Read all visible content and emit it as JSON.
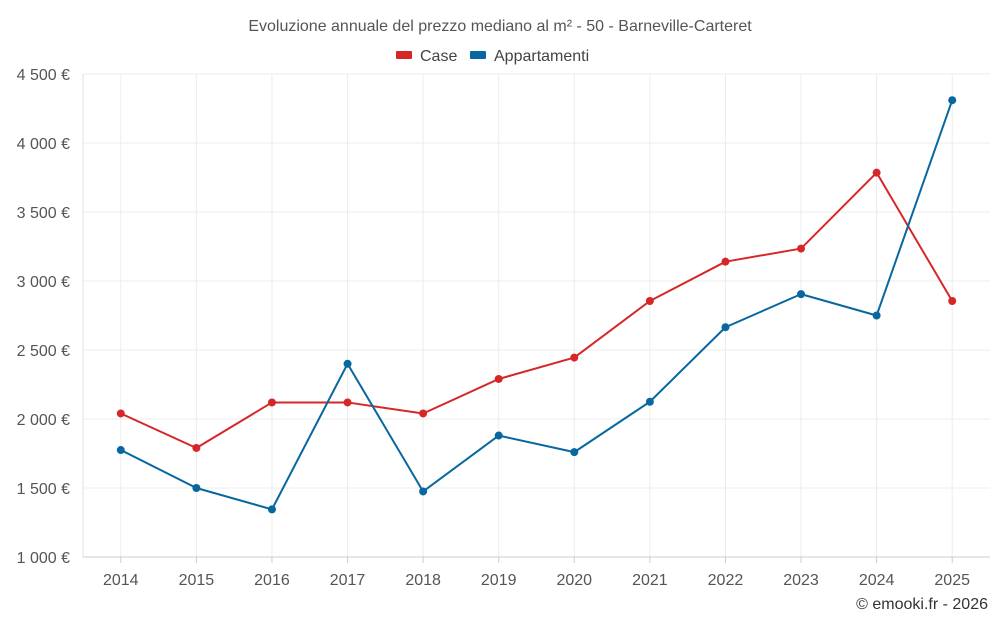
{
  "chart_data": {
    "type": "line",
    "title": "Evoluzione annuale del prezzo mediano al m² - 50 - Barneville-Carteret",
    "categories": [
      "2014",
      "2015",
      "2016",
      "2017",
      "2018",
      "2019",
      "2020",
      "2021",
      "2022",
      "2023",
      "2024",
      "2025"
    ],
    "y_tick_labels": [
      "1 000 €",
      "1 500 €",
      "2 000 €",
      "2 500 €",
      "3 000 €",
      "3 500 €",
      "4 000 €",
      "4 500 €"
    ],
    "y_ticks": [
      1000,
      1500,
      2000,
      2500,
      3000,
      3500,
      4000,
      4500
    ],
    "ylim": [
      1000,
      4500
    ],
    "xlabel": "",
    "ylabel": "",
    "grid": true,
    "legend_position": "top-center",
    "series": [
      {
        "name": "Case",
        "color": "#d62728",
        "values": [
          2040,
          1790,
          2120,
          2120,
          2040,
          2290,
          2445,
          2855,
          3140,
          3235,
          3785,
          2855
        ]
      },
      {
        "name": "Appartamenti",
        "color": "#08679e",
        "values": [
          1775,
          1500,
          1345,
          2400,
          1475,
          1880,
          1760,
          2125,
          2665,
          2905,
          2750,
          4310
        ]
      }
    ],
    "credit": "© emooki.fr - 2026"
  }
}
